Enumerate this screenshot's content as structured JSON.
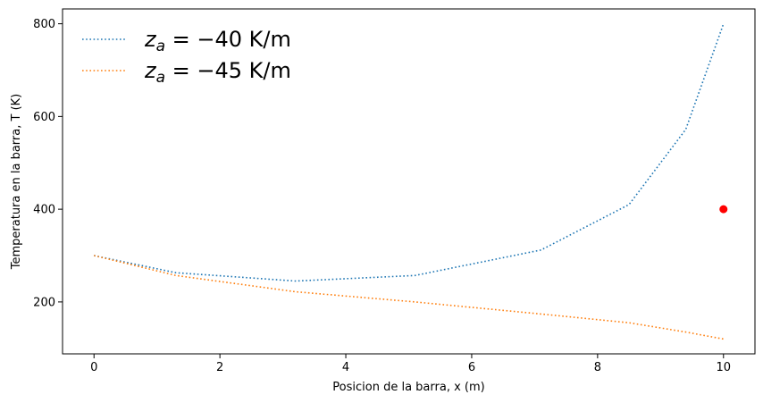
{
  "chart_data": {
    "type": "line",
    "title": "",
    "xlabel": "Posicion de la barra, x (m)",
    "ylabel": "Temperatura en la barra, T (K)",
    "xlim": [
      -0.5,
      10.5
    ],
    "ylim": [
      88,
      832
    ],
    "xticks": [
      0,
      2,
      4,
      6,
      8,
      10
    ],
    "yticks": [
      200,
      400,
      600,
      800
    ],
    "grid": false,
    "legend_position": "top-left",
    "series": [
      {
        "name": "z_a = −40 K/m",
        "legend_label": "= −40 K/m",
        "color": "#1f77b4",
        "linestyle": "dotted",
        "x": [
          0,
          1.3,
          3.2,
          5.1,
          7.1,
          8.5,
          9.4,
          10
        ],
        "y": [
          300,
          263,
          245,
          257,
          312,
          410,
          572,
          800
        ]
      },
      {
        "name": "z_a = −45 K/m",
        "legend_label": "= −45 K/m",
        "color": "#ff7f0e",
        "linestyle": "dotted",
        "x": [
          0,
          1.3,
          3.2,
          5.1,
          7.1,
          8.5,
          9.4,
          10
        ],
        "y": [
          300,
          257,
          222,
          200,
          174,
          155,
          135,
          120
        ]
      }
    ],
    "markers": [
      {
        "x": 10,
        "y": 400,
        "color": "#ff0000"
      }
    ]
  }
}
